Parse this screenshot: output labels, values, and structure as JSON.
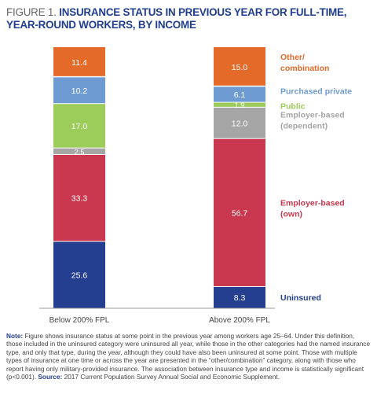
{
  "title": {
    "lead": "FIGURE 1.",
    "text": "INSURANCE STATUS IN PREVIOUS YEAR FOR FULL-TIME, YEAR-ROUND WORKERS, BY INCOME"
  },
  "chart_data": {
    "type": "bar",
    "stacked": true,
    "unit": "percent",
    "categories": [
      "Below 200% FPL",
      "Above 200% FPL"
    ],
    "series": [
      {
        "name": "Uninsured",
        "color": "#243f8f",
        "values": [
          25.6,
          8.3
        ]
      },
      {
        "name": "Employer-based (own)",
        "color": "#c9384e",
        "values": [
          33.3,
          56.7
        ]
      },
      {
        "name": "Employer-based (dependent)",
        "color": "#a6a6a6",
        "values": [
          2.5,
          12.0
        ]
      },
      {
        "name": "Public",
        "color": "#9ccc5a",
        "values": [
          17.0,
          1.9
        ]
      },
      {
        "name": "Purchased private",
        "color": "#6f9bd3",
        "values": [
          10.2,
          6.1
        ]
      },
      {
        "name": "Other/ combination",
        "color": "#e46a2a",
        "values": [
          11.4,
          15.0
        ]
      }
    ],
    "value_labels": [
      [
        "25.6",
        "8.3"
      ],
      [
        "33.3",
        "56.7"
      ],
      [
        "2.5",
        "12.0"
      ],
      [
        "17.0",
        "1.9"
      ],
      [
        "10.2",
        "6.1"
      ],
      [
        "11.4",
        "15.0"
      ]
    ],
    "legend": [
      {
        "lines": [
          "Uninsured"
        ],
        "color": "#243f8f"
      },
      {
        "lines": [
          "Employer-based",
          "(own)"
        ],
        "color": "#c9384e"
      },
      {
        "lines": [
          "Employer-based",
          "(dependent)"
        ],
        "color": "#a6a6a6"
      },
      {
        "lines": [
          "Public"
        ],
        "color": "#9ccc5a"
      },
      {
        "lines": [
          "Purchased private"
        ],
        "color": "#6f9bd3"
      },
      {
        "lines": [
          "Other/",
          "combination"
        ],
        "color": "#e46a2a"
      }
    ],
    "legend_placement": "right",
    "ylim": [
      0,
      100
    ],
    "grid": false
  },
  "note": {
    "label": "Note:",
    "text": "Figure shows insurance status at some point in the previous year among workers age 25–64. Under this definition, those included in the uninsured category were uninsured all year, while those in the other categories had the named insurance type, and only that type, during the year, although they could have also been uninsured at some point. Those with multiple types of insurance at one time or across the year are presented in the “other/combination” category, along with those who report having only military-provided insurance. The association between insurance type and income is statistically significant (p<0.001).",
    "source_label": "Source:",
    "source_text": "2017 Current Population Survey Annual Social and Economic Supplement."
  }
}
